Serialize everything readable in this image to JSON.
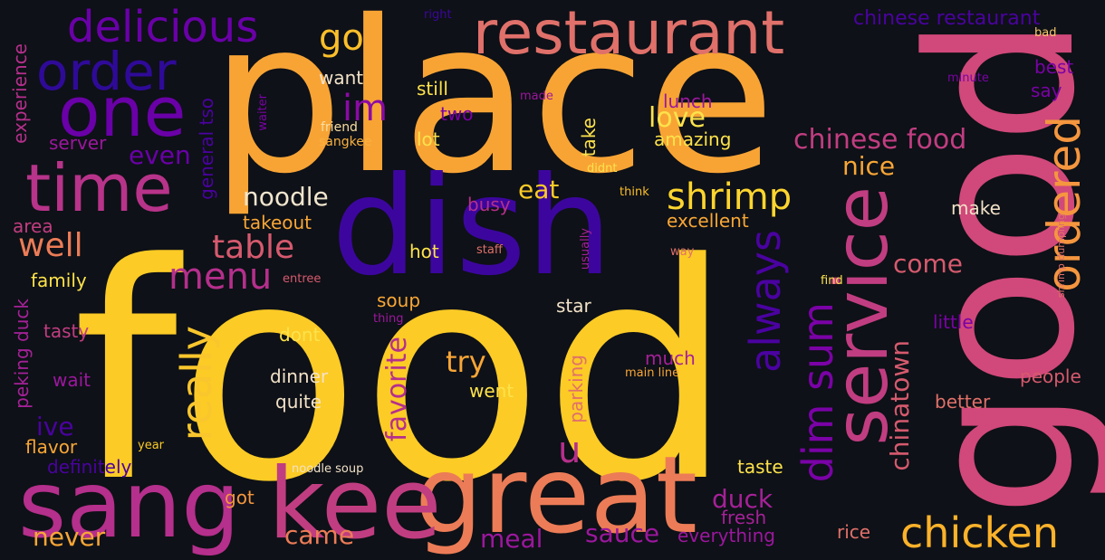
{
  "background_color": "#0e1117",
  "palette": [
    "#fcce25",
    "#f8a036",
    "#e57164",
    "#cc4977",
    "#a42197",
    "#7601a8",
    "#4a02a0",
    "#2a0a9a"
  ],
  "words": {
    "food": "food",
    "place": "place",
    "good": "good",
    "dish": "dish",
    "great": "great",
    "sang": "sang",
    "kee": "kee",
    "service": "service",
    "time": "time",
    "one": "one",
    "restaurant": "restaurant",
    "order": "order",
    "delicious": "delicious",
    "always": "always",
    "really": "really",
    "ordered": "ordered",
    "chicken": "chicken",
    "shrimp": "shrimp",
    "dim_sum": "dim sum",
    "chinese_food": "chinese food",
    "menu": "menu",
    "well": "well",
    "table": "table",
    "go": "go",
    "im": "im",
    "noodle": "noodle",
    "favorite": "favorite",
    "love": "love",
    "nice": "nice",
    "duck": "duck",
    "try": "try",
    "u": "u",
    "eat": "eat",
    "meal": "meal",
    "sauce": "sauce",
    "came": "came",
    "never": "never",
    "chinatown": "chinatown",
    "come": "come",
    "even": "even",
    "ive": "ive",
    "got": "got",
    "chinese_restaurant": "chinese restaurant",
    "right": "right",
    "bad": "bad",
    "best": "best",
    "say": "say",
    "minute": "minute",
    "want": "want",
    "still": "still",
    "made": "made",
    "lunch": "lunch",
    "two": "two",
    "friend": "friend",
    "sangkee": "sangkee",
    "waiter": "waiter",
    "general_tso": "general tso",
    "experience": "experience",
    "server": "server",
    "lot": "lot",
    "take": "take",
    "amazing": "amazing",
    "didnt": "didnt",
    "think": "think",
    "excellent": "excellent",
    "takeout": "takeout",
    "busy": "busy",
    "make": "make",
    "area": "area",
    "hot": "hot",
    "staff": "staff",
    "usually": "usually",
    "way": "way",
    "shrimp_dumpling": "shrimp dumpling",
    "family": "family",
    "entree": "entree",
    "find": "find",
    "peking_duck": "peking duck",
    "soup": "soup",
    "star": "star",
    "thing": "thing",
    "tasty": "tasty",
    "dont": "dont",
    "little": "little",
    "much": "much",
    "main_line": "main line",
    "wait": "wait",
    "dinner": "dinner",
    "went": "went",
    "parking": "parking",
    "people": "people",
    "quite": "quite",
    "better": "better",
    "flavor": "flavor",
    "year": "year",
    "definitely": "definitely",
    "noodle_soup": "noodle soup",
    "taste": "taste",
    "fresh": "fresh",
    "everything": "everything",
    "rice": "rice"
  }
}
